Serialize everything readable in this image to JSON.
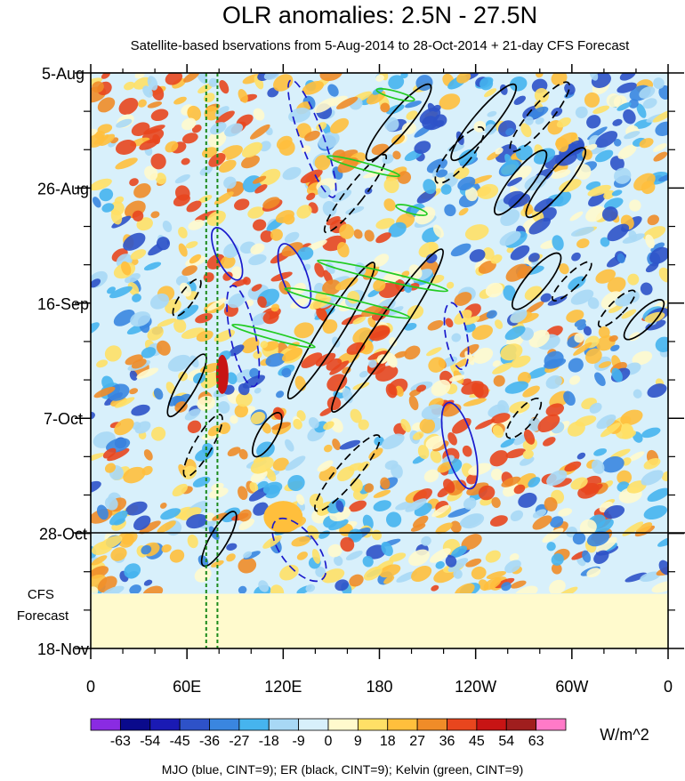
{
  "chart_data": {
    "type": "heatmap",
    "title": "OLR anomalies: 2.5N - 27.5N",
    "subtitle": "Satellite-based bservations from 5-Aug-2014 to 28-Oct-2014 + 21-day CFS Forecast",
    "x_ticks": [
      {
        "lon": 0,
        "label": "0"
      },
      {
        "lon": 60,
        "label": "60E"
      },
      {
        "lon": 120,
        "label": "120E"
      },
      {
        "lon": 180,
        "label": "180"
      },
      {
        "lon": 240,
        "label": "120W"
      },
      {
        "lon": 300,
        "label": "60W"
      },
      {
        "lon": 360,
        "label": "0"
      }
    ],
    "y_ticks": [
      {
        "day": 0,
        "label": "5-Aug"
      },
      {
        "day": 21,
        "label": "26-Aug"
      },
      {
        "day": 42,
        "label": "16-Sep"
      },
      {
        "day": 63,
        "label": "7-Oct"
      },
      {
        "day": 84,
        "label": "28-Oct"
      },
      {
        "day": 105,
        "label": "18-Nov"
      }
    ],
    "xlim": [
      0,
      360
    ],
    "ylim_days": [
      0,
      105
    ],
    "forecast_label": "CFS Forecast",
    "forecast_start_day": 84,
    "colorbar": {
      "levels": [
        "-63",
        "-54",
        "-45",
        "-36",
        "-27",
        "-18",
        "-9",
        "0",
        "9",
        "18",
        "27",
        "36",
        "45",
        "54",
        "63"
      ],
      "colors": [
        "#8a2be2",
        "#0a0a8c",
        "#1a1ab4",
        "#2e52c8",
        "#3a86e0",
        "#46b4ee",
        "#a8d8f5",
        "#d8f0fb",
        "#fffacd",
        "#ffe066",
        "#ffbf3c",
        "#f08c28",
        "#e8461e",
        "#c81414",
        "#a01e1e",
        "#ff7ac8"
      ],
      "units": "W/m^2"
    },
    "footer": "MJO (blue, CINT=9); ER (black, CINT=9); Kelvin (green, CINT=9)",
    "contour_colors": {
      "mjo": "#1a1acc",
      "er": "#000000",
      "kelvin": "#22cc22"
    },
    "reference_lines_lon": [
      72,
      79
    ]
  }
}
